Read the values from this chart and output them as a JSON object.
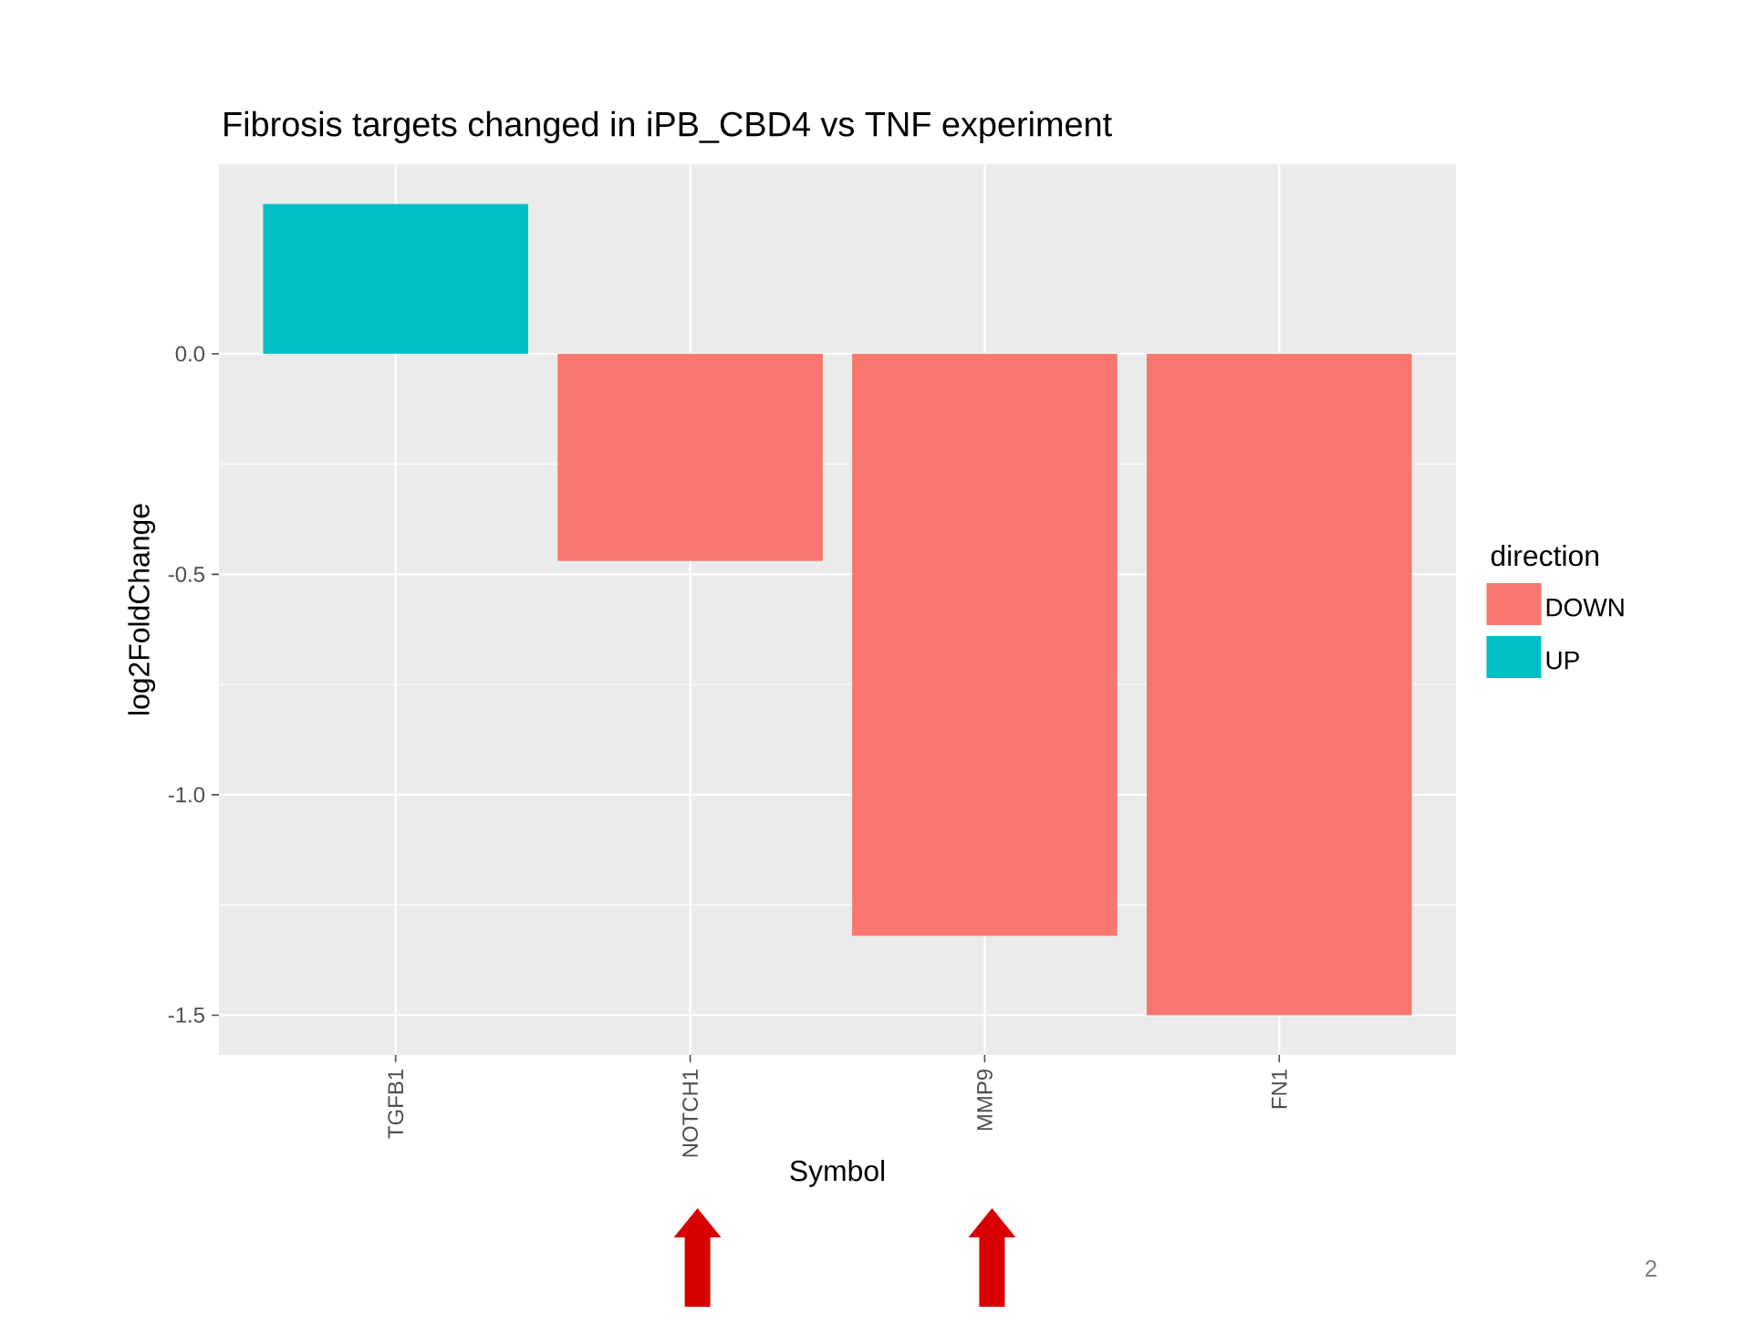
{
  "chart_data": {
    "type": "bar",
    "title": "Fibrosis targets changed in iPB_CBD4 vs TNF experiment",
    "xlabel": "Symbol",
    "ylabel": "log2FoldChange",
    "legend_title": "direction",
    "categories": [
      "TGFB1",
      "NOTCH1",
      "MMP9",
      "FN1"
    ],
    "series": [
      {
        "name": "DOWN",
        "color": "#f8766d",
        "values": [
          null,
          -0.47,
          -1.32,
          -1.5
        ]
      },
      {
        "name": "UP",
        "color": "#00bfc4",
        "values": [
          0.34,
          null,
          null,
          null
        ]
      }
    ],
    "ylim": [
      -1.59,
      0.43
    ],
    "yticks": [
      {
        "value": -1.5,
        "label": "-1.5"
      },
      {
        "value": -1.0,
        "label": "-1.0"
      },
      {
        "value": -0.5,
        "label": "-0.5"
      },
      {
        "value": 0,
        "label": "0.0"
      }
    ],
    "grid": true,
    "legend": "right",
    "annotations": [
      "2"
    ]
  }
}
